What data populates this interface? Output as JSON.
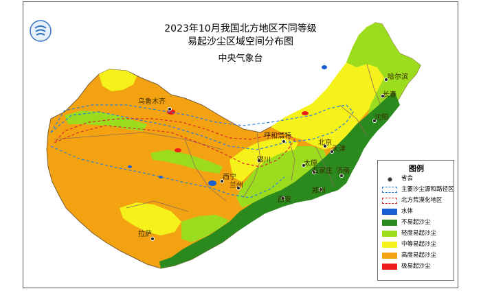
{
  "title": {
    "line1": "2023年10月我国北方地区不同等级",
    "line2": "易起沙尘区域空间分布图",
    "subtitle": "中央气象台"
  },
  "colors": {
    "water": "#1a5fd1",
    "not_easy": "#2b8a1e",
    "light": "#9bdc1e",
    "medium": "#f4f21a",
    "high": "#f3a312",
    "extreme": "#ee1c1c",
    "province_border": "#8c6a5a",
    "dust_path": "#2b7fd6",
    "desert_area": "#d62b2b"
  },
  "cities": [
    {
      "name": "乌鲁木齐"
    },
    {
      "name": "哈尔滨"
    },
    {
      "name": "长春"
    },
    {
      "name": "沈阳"
    },
    {
      "name": "呼和浩特"
    },
    {
      "name": "北京"
    },
    {
      "name": "天津"
    },
    {
      "name": "银川"
    },
    {
      "name": "太原"
    },
    {
      "name": "石家庄"
    },
    {
      "name": "济南"
    },
    {
      "name": "西宁"
    },
    {
      "name": "兰州"
    },
    {
      "name": "郑州"
    },
    {
      "name": "西安"
    },
    {
      "name": "拉萨"
    }
  ],
  "legend": {
    "title": "图例",
    "items": [
      {
        "label": "省会",
        "kind": "dot"
      },
      {
        "label": "主要沙尘源和路径区",
        "kind": "dash-blue"
      },
      {
        "label": "北方荒漠化地区",
        "kind": "dash-red"
      },
      {
        "label": "水体",
        "kind": "fill",
        "color": "#1a5fd1"
      },
      {
        "label": "不易起沙尘",
        "kind": "fill",
        "color": "#2b8a1e"
      },
      {
        "label": "轻度易起沙尘",
        "kind": "fill",
        "color": "#9bdc1e"
      },
      {
        "label": "中等易起沙尘",
        "kind": "fill",
        "color": "#f4f21a"
      },
      {
        "label": "高度易起沙尘",
        "kind": "fill",
        "color": "#f3a312"
      },
      {
        "label": "极易起沙尘",
        "kind": "fill",
        "color": "#ee1c1c"
      }
    ]
  }
}
